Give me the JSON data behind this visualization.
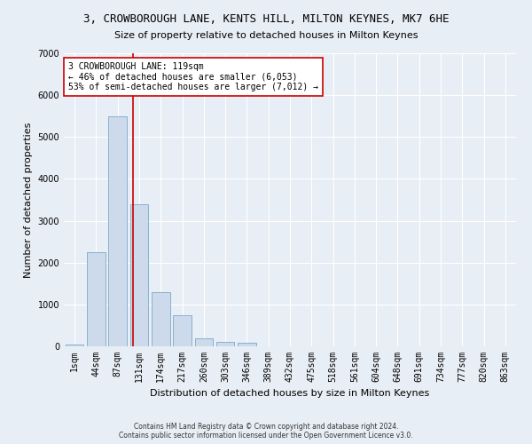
{
  "title": "3, CROWBOROUGH LANE, KENTS HILL, MILTON KEYNES, MK7 6HE",
  "subtitle": "Size of property relative to detached houses in Milton Keynes",
  "xlabel": "Distribution of detached houses by size in Milton Keynes",
  "ylabel": "Number of detached properties",
  "bar_color": "#ccdaeb",
  "bar_edge_color": "#7aaac8",
  "categories": [
    "1sqm",
    "44sqm",
    "87sqm",
    "131sqm",
    "174sqm",
    "217sqm",
    "260sqm",
    "303sqm",
    "346sqm",
    "389sqm",
    "432sqm",
    "475sqm",
    "518sqm",
    "561sqm",
    "604sqm",
    "648sqm",
    "691sqm",
    "734sqm",
    "777sqm",
    "820sqm",
    "863sqm"
  ],
  "values": [
    50,
    2250,
    5500,
    3400,
    1300,
    750,
    200,
    100,
    75,
    10,
    0,
    0,
    0,
    0,
    0,
    0,
    0,
    0,
    0,
    0,
    0
  ],
  "ylim": [
    0,
    7000
  ],
  "yticks": [
    0,
    1000,
    2000,
    3000,
    4000,
    5000,
    6000,
    7000
  ],
  "vline_color": "#cc0000",
  "vline_x": 2.727,
  "annotation_text": "3 CROWBOROUGH LANE: 119sqm\n← 46% of detached houses are smaller (6,053)\n53% of semi-detached houses are larger (7,012) →",
  "annotation_box_color": "#ffffff",
  "annotation_box_edge": "#cc0000",
  "footnote1": "Contains HM Land Registry data © Crown copyright and database right 2024.",
  "footnote2": "Contains public sector information licensed under the Open Government Licence v3.0.",
  "background_color": "#e8eef5",
  "plot_background": "#e8eef5",
  "grid_color": "#ffffff",
  "title_fontsize": 9,
  "axis_fontsize": 8,
  "tick_fontsize": 7,
  "annot_fontsize": 7
}
